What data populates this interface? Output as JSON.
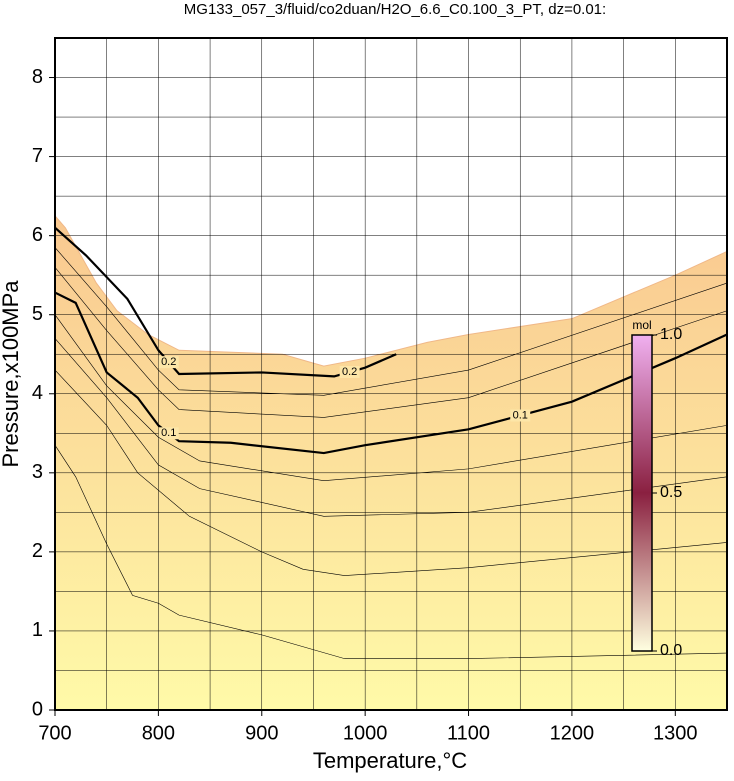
{
  "chart_data": {
    "type": "contour",
    "title": "MG133_057_3/fluid/co2duan/H2O_6.6_C0.100_3_PT, dz=0.01:",
    "x_label": "Temperature,°C",
    "y_label": "Pressure,x100MPa",
    "xlim": [
      700,
      1350
    ],
    "ylim": [
      0,
      8.5
    ],
    "xticks": [
      700,
      800,
      900,
      1000,
      1100,
      1200,
      1300
    ],
    "yticks": [
      0,
      1,
      2,
      3,
      4,
      5,
      6,
      7,
      8
    ],
    "xgrid": [
      700,
      750,
      800,
      850,
      900,
      950,
      1000,
      1050,
      1100,
      1150,
      1200,
      1250,
      1300,
      1350
    ],
    "ygrid": [
      0,
      0.5,
      1,
      1.5,
      2,
      2.5,
      3,
      3.5,
      4,
      4.5,
      5,
      5.5,
      6,
      6.5,
      7,
      7.5,
      8,
      8.5
    ],
    "grid": true,
    "fill_colors": [
      "#fffaa8",
      "#f9c890"
    ],
    "boundary": {
      "x": [
        700,
        710,
        740,
        760,
        790,
        820,
        920,
        960,
        1000,
        1060,
        1100,
        1200,
        1300,
        1350
      ],
      "y": [
        6.25,
        6.1,
        5.4,
        5.05,
        4.75,
        4.55,
        4.5,
        4.35,
        4.45,
        4.65,
        4.75,
        4.95,
        5.5,
        5.8
      ]
    },
    "contours": [
      {
        "level": 0.1,
        "bold": true,
        "x": [
          700,
          720,
          750,
          780,
          800,
          820,
          870,
          960,
          1000,
          1100,
          1200,
          1300,
          1350
        ],
        "y": [
          5.28,
          5.15,
          4.27,
          3.95,
          3.6,
          3.4,
          3.38,
          3.25,
          3.35,
          3.55,
          3.9,
          4.45,
          4.75
        ]
      },
      {
        "level": 0.2,
        "bold": true,
        "x": [
          700,
          730,
          770,
          800,
          820,
          900,
          970,
          1000,
          1030
        ],
        "y": [
          6.1,
          5.75,
          5.2,
          4.55,
          4.25,
          4.27,
          4.22,
          4.33,
          4.5
        ]
      },
      {
        "bold": false,
        "x": [
          700,
          720,
          750,
          775,
          800,
          820,
          900,
          980,
          1100,
          1350
        ],
        "y": [
          3.35,
          2.95,
          2.1,
          1.45,
          1.35,
          1.2,
          0.95,
          0.65,
          0.65,
          0.72
        ]
      },
      {
        "bold": false,
        "x": [
          700,
          750,
          780,
          830,
          900,
          940,
          980,
          1100,
          1350
        ],
        "y": [
          4.3,
          3.6,
          3.0,
          2.45,
          2.0,
          1.78,
          1.7,
          1.8,
          2.12
        ]
      },
      {
        "bold": false,
        "x": [
          700,
          750,
          800,
          840,
          960,
          1100,
          1350
        ],
        "y": [
          4.7,
          3.95,
          3.1,
          2.8,
          2.45,
          2.5,
          2.95
        ]
      },
      {
        "bold": false,
        "x": [
          700,
          750,
          800,
          840,
          960,
          1100,
          1350
        ],
        "y": [
          5.0,
          4.1,
          3.45,
          3.15,
          2.9,
          3.05,
          3.6
        ]
      },
      {
        "bold": false,
        "x": [
          700,
          750,
          800,
          820,
          960,
          1100,
          1350
        ],
        "y": [
          5.6,
          4.8,
          4.05,
          3.8,
          3.7,
          3.95,
          5.05
        ]
      },
      {
        "bold": false,
        "x": [
          700,
          750,
          800,
          820,
          960,
          1100,
          1350
        ],
        "y": [
          5.85,
          5.1,
          4.3,
          4.05,
          3.98,
          4.3,
          5.4
        ]
      }
    ],
    "colorbar": {
      "label": "mol",
      "lim": [
        0,
        1
      ],
      "colors": [
        "#ffffe0",
        "#8a2040",
        "#f0b0f0"
      ],
      "ticks": [
        {
          "value": 0,
          "label": "0.0"
        },
        {
          "value": 0.5,
          "label": "0.5"
        },
        {
          "value": 1,
          "label": "1.0"
        }
      ]
    }
  }
}
